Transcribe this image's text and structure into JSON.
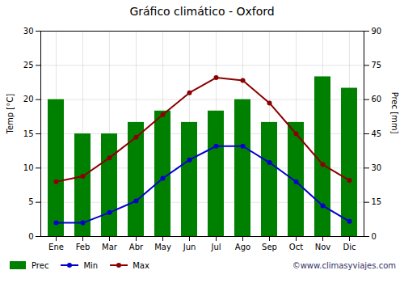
{
  "chart_data": {
    "type": "bar",
    "title": "Gráfico climático - Oxford",
    "categories": [
      "Ene",
      "Feb",
      "Mar",
      "Abr",
      "May",
      "Jun",
      "Jul",
      "Ago",
      "Sep",
      "Oct",
      "Nov",
      "Dic"
    ],
    "series": [
      {
        "name": "Prec",
        "type": "bar",
        "axis": "y2",
        "color": "#008000",
        "values": [
          60,
          45,
          45,
          50,
          55,
          50,
          55,
          60,
          50,
          50,
          70,
          65
        ]
      },
      {
        "name": "Min",
        "type": "line",
        "color": "#0000CD",
        "marker": "circle",
        "values": [
          2.0,
          2.0,
          3.5,
          5.2,
          8.5,
          11.2,
          13.2,
          13.2,
          10.8,
          8.0,
          4.5,
          2.2
        ]
      },
      {
        "name": "Max",
        "type": "line",
        "color": "#8B0000",
        "marker": "circle",
        "values": [
          8.0,
          8.8,
          11.5,
          14.5,
          17.8,
          21.0,
          23.2,
          22.8,
          19.5,
          15.0,
          10.5,
          8.2
        ]
      }
    ],
    "ylabel": "Temp [°C]",
    "y2label": "Prec [mm]",
    "ylim": [
      0,
      30
    ],
    "yticks": [
      0,
      5,
      10,
      15,
      20,
      25,
      30
    ],
    "y2lim": [
      0,
      90
    ],
    "y2ticks": [
      0,
      15,
      30,
      45,
      60,
      75,
      90
    ],
    "grid": true,
    "legend": "bottom",
    "annotations": [
      "©www.climasyviajes.com"
    ]
  }
}
